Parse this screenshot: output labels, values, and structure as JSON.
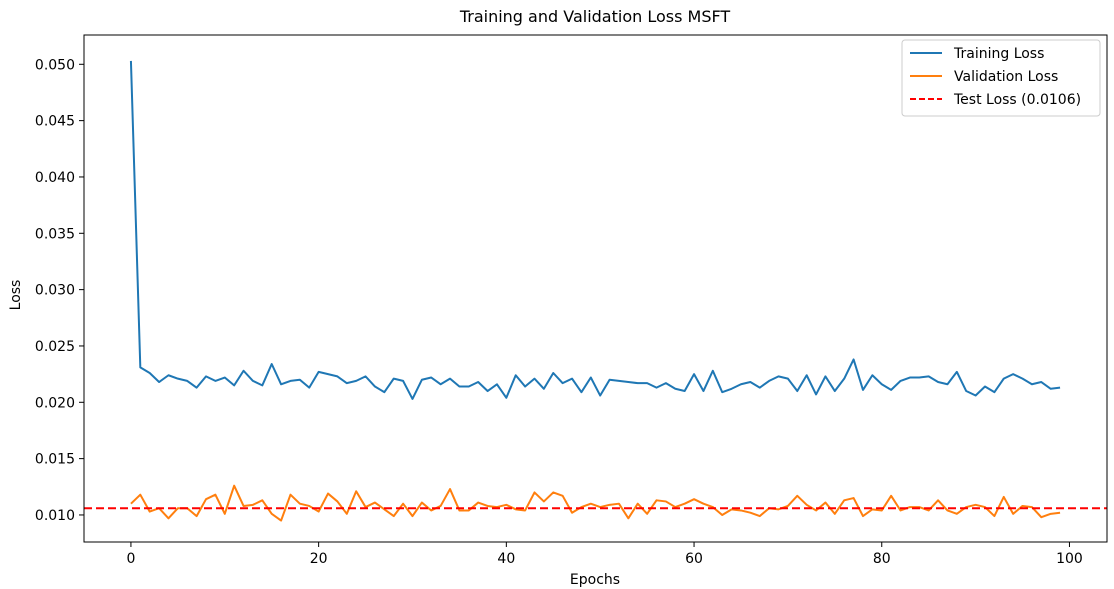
{
  "chart_data": {
    "type": "line",
    "title": "Training and Validation Loss MSFT",
    "xlabel": "Epochs",
    "ylabel": "Loss",
    "xlim": [
      -5,
      104
    ],
    "ylim": [
      0.0076,
      0.0526
    ],
    "x_ticks": [
      0,
      20,
      40,
      60,
      80,
      100
    ],
    "x_tick_labels": [
      "0",
      "20",
      "40",
      "60",
      "80",
      "100"
    ],
    "y_ticks": [
      0.01,
      0.015,
      0.02,
      0.025,
      0.03,
      0.035,
      0.04,
      0.045,
      0.05
    ],
    "y_tick_labels": [
      "0.010",
      "0.015",
      "0.020",
      "0.025",
      "0.030",
      "0.035",
      "0.040",
      "0.045",
      "0.050"
    ],
    "grid": false,
    "legend_position": "top-right",
    "series": [
      {
        "name": "Training Loss",
        "color": "#1f77b4",
        "style": "solid",
        "values": [
          0.0503,
          0.0231,
          0.0226,
          0.0218,
          0.0224,
          0.0221,
          0.0219,
          0.0213,
          0.0223,
          0.0219,
          0.0222,
          0.0215,
          0.0228,
          0.0219,
          0.0215,
          0.0234,
          0.0216,
          0.0219,
          0.022,
          0.0213,
          0.0227,
          0.0225,
          0.0223,
          0.0217,
          0.0219,
          0.0223,
          0.0214,
          0.0209,
          0.0221,
          0.0219,
          0.0203,
          0.022,
          0.0222,
          0.0216,
          0.0221,
          0.0214,
          0.0214,
          0.0218,
          0.021,
          0.0216,
          0.0204,
          0.0224,
          0.0214,
          0.0221,
          0.0212,
          0.0226,
          0.0217,
          0.0221,
          0.0209,
          0.0222,
          0.0206,
          0.022,
          0.0219,
          0.0218,
          0.0217,
          0.0217,
          0.0213,
          0.0217,
          0.0212,
          0.021,
          0.0225,
          0.021,
          0.0228,
          0.0209,
          0.0212,
          0.0216,
          0.0218,
          0.0213,
          0.0219,
          0.0223,
          0.0221,
          0.021,
          0.0224,
          0.0207,
          0.0223,
          0.021,
          0.0221,
          0.0238,
          0.0211,
          0.0224,
          0.0216,
          0.0211,
          0.0219,
          0.0222,
          0.0222,
          0.0223,
          0.0218,
          0.0216,
          0.0227,
          0.021,
          0.0206,
          0.0214,
          0.0209,
          0.0221,
          0.0225,
          0.0221,
          0.0216,
          0.0218,
          0.0212,
          0.0213
        ]
      },
      {
        "name": "Validation Loss",
        "color": "#ff7f0e",
        "style": "solid",
        "values": [
          0.011,
          0.0118,
          0.0103,
          0.0106,
          0.0097,
          0.0106,
          0.0106,
          0.0099,
          0.0114,
          0.0118,
          0.0101,
          0.0126,
          0.0108,
          0.0109,
          0.0113,
          0.0101,
          0.0095,
          0.0118,
          0.011,
          0.0108,
          0.0103,
          0.0119,
          0.0112,
          0.0101,
          0.0121,
          0.0107,
          0.0111,
          0.0105,
          0.0099,
          0.011,
          0.0099,
          0.0111,
          0.0104,
          0.0108,
          0.0123,
          0.0104,
          0.0104,
          0.0111,
          0.0108,
          0.0107,
          0.0109,
          0.0105,
          0.0104,
          0.012,
          0.0112,
          0.012,
          0.0117,
          0.0102,
          0.0107,
          0.011,
          0.0107,
          0.0109,
          0.011,
          0.0097,
          0.011,
          0.0101,
          0.0113,
          0.0112,
          0.0107,
          0.011,
          0.0114,
          0.011,
          0.0107,
          0.01,
          0.0105,
          0.0104,
          0.0102,
          0.0099,
          0.0106,
          0.0105,
          0.0108,
          0.0117,
          0.0109,
          0.0104,
          0.0111,
          0.0101,
          0.0113,
          0.0115,
          0.0099,
          0.0105,
          0.0104,
          0.0117,
          0.0104,
          0.0107,
          0.0107,
          0.0104,
          0.0113,
          0.0104,
          0.0101,
          0.0107,
          0.0109,
          0.0107,
          0.0099,
          0.0116,
          0.0101,
          0.0108,
          0.0107,
          0.0098,
          0.0101,
          0.0102
        ]
      }
    ],
    "reference_lines": [
      {
        "name": "Test Loss (0.0106)",
        "value": 0.0106,
        "color": "#ff0000",
        "style": "dashed"
      }
    ]
  }
}
